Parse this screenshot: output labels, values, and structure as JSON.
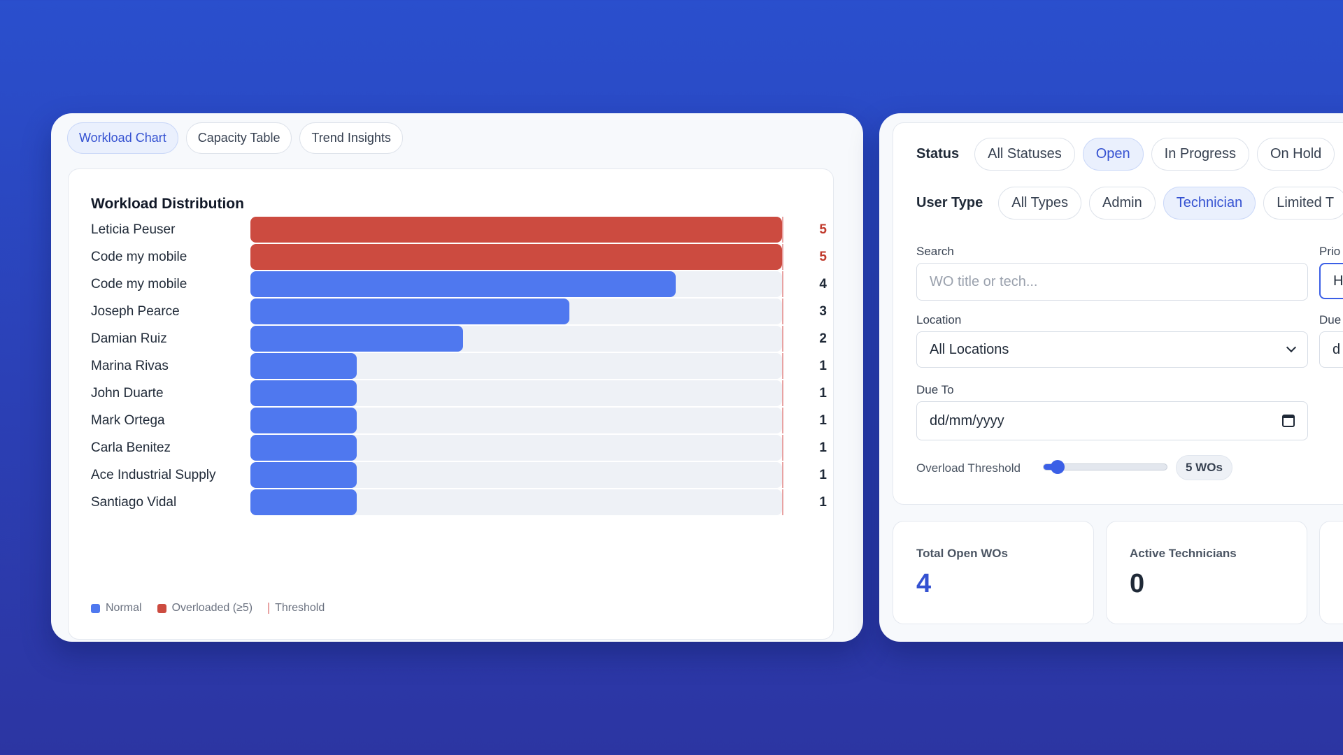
{
  "tabs": [
    {
      "label": "Workload Chart",
      "active": true
    },
    {
      "label": "Capacity Table",
      "active": false
    },
    {
      "label": "Trend Insights",
      "active": false
    }
  ],
  "chart": {
    "title": "Workload Distribution",
    "legend": {
      "normal": "Normal",
      "overloaded": "Overloaded (≥5)",
      "threshold": "Threshold"
    }
  },
  "chart_data": {
    "type": "bar",
    "orientation": "horizontal",
    "title": "Workload Distribution",
    "categories": [
      "Leticia Peuser",
      "Code my mobile",
      "Code my mobile",
      "Joseph Pearce",
      "Damian Ruiz",
      "Marina Rivas",
      "John Duarte",
      "Mark Ortega",
      "Carla Benitez",
      "Ace Industrial Supply",
      "Santiago Vidal"
    ],
    "values": [
      5,
      5,
      4,
      3,
      2,
      1,
      1,
      1,
      1,
      1,
      1
    ],
    "xlim": [
      0,
      5
    ],
    "threshold": 5,
    "grid": false,
    "legend_position": "bottom-left",
    "colors": {
      "normal": "#4f78ef",
      "overloaded": "#cc4b40",
      "threshold": "#e8a3a3",
      "track": "#eef1f6",
      "overloaded_value_text": "#c0392b",
      "normal_value_text": "#1f2937"
    }
  },
  "filters": {
    "status": {
      "label": "Status",
      "options": [
        {
          "label": "All Statuses",
          "active": false
        },
        {
          "label": "Open",
          "active": true
        },
        {
          "label": "In Progress",
          "active": false
        },
        {
          "label": "On Hold",
          "active": false
        }
      ]
    },
    "user_type": {
      "label": "User Type",
      "options": [
        {
          "label": "All Types",
          "active": false
        },
        {
          "label": "Admin",
          "active": false
        },
        {
          "label": "Technician",
          "active": true
        },
        {
          "label": "Limited T",
          "active": false
        }
      ]
    },
    "search": {
      "label": "Search",
      "placeholder": "WO title or tech...",
      "value": ""
    },
    "priority": {
      "label": "Prio",
      "value": "H"
    },
    "location": {
      "label": "Location",
      "value": "All Locations"
    },
    "due_from": {
      "label": "Due",
      "value": "d"
    },
    "due_to": {
      "label": "Due To",
      "value": "dd/mm/yyyy"
    },
    "threshold": {
      "label": "Overload Threshold",
      "value_label": "5 WOs",
      "level_fraction": 0.11
    }
  },
  "stats": [
    {
      "label": "Total Open WOs",
      "value": "4",
      "color": "#3451d1"
    },
    {
      "label": "Active Technicians",
      "value": "0",
      "color": "#1f2937"
    }
  ],
  "accent_color": "#3b5fe6"
}
